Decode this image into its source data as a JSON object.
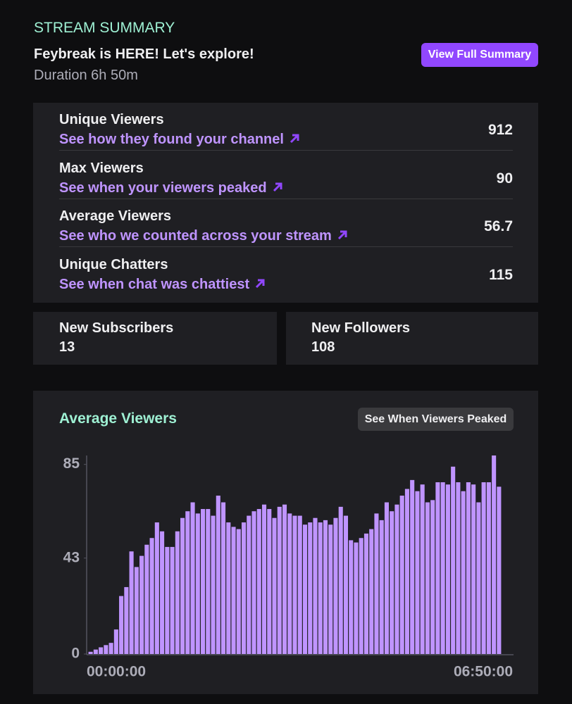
{
  "header": {
    "section": "STREAM SUMMARY",
    "title": "Feybreak is HERE! Let's explore!",
    "duration": "Duration 6h 50m",
    "button": "View Full Summary"
  },
  "stats": {
    "rows": [
      {
        "label": "Unique Viewers",
        "link": "See how they found your channel",
        "value": 912
      },
      {
        "label": "Max Viewers",
        "link": "See when your viewers peaked",
        "value": 90
      },
      {
        "label": "Average Viewers",
        "link": "See who we counted across your stream",
        "value": 56.7
      },
      {
        "label": "Unique Chatters",
        "link": "See when chat was chattiest",
        "value": 115
      }
    ]
  },
  "cards": [
    {
      "label": "New Subscribers",
      "value": 13
    },
    {
      "label": "New Followers",
      "value": 108
    }
  ],
  "chart_data": {
    "type": "bar",
    "title": "Average Viewers",
    "button": "See When Viewers Peaked",
    "color": "#bf94ff",
    "categories": [
      "00:00:00",
      null,
      null,
      null,
      null,
      null,
      null,
      null,
      null,
      null,
      null,
      null,
      null,
      null,
      null,
      null,
      null,
      null,
      null,
      null,
      null,
      null,
      null,
      null,
      null,
      null,
      null,
      null,
      null,
      null,
      null,
      null,
      null,
      null,
      null,
      null,
      null,
      null,
      null,
      null,
      null,
      null,
      null,
      null,
      null,
      null,
      null,
      null,
      null,
      null,
      null,
      null,
      null,
      null,
      null,
      null,
      null,
      null,
      null,
      null,
      null,
      null,
      null,
      null,
      null,
      null,
      null,
      null,
      null,
      null,
      null,
      null,
      null,
      null,
      null,
      null,
      null,
      null,
      null,
      null,
      "06:50:00"
    ],
    "values": [
      1,
      2,
      3,
      4,
      5,
      11,
      26,
      30,
      46,
      39,
      44,
      49,
      52,
      59,
      55,
      48,
      48,
      55,
      61,
      64,
      68,
      63,
      65,
      65,
      62,
      71,
      68,
      59,
      57,
      56,
      59,
      62,
      64,
      65,
      67,
      65,
      61,
      66,
      67,
      63,
      62,
      62,
      58,
      59,
      61,
      59,
      60,
      58,
      61,
      66,
      62,
      51,
      50,
      52,
      54,
      56,
      63,
      60,
      68,
      64,
      67,
      71,
      74,
      78,
      73,
      76,
      68,
      69,
      77,
      77,
      76,
      84,
      77,
      73,
      77,
      76,
      68,
      77,
      77,
      89,
      75
    ],
    "ylim": [
      0,
      89
    ],
    "yticks": [
      0,
      43,
      85
    ]
  }
}
